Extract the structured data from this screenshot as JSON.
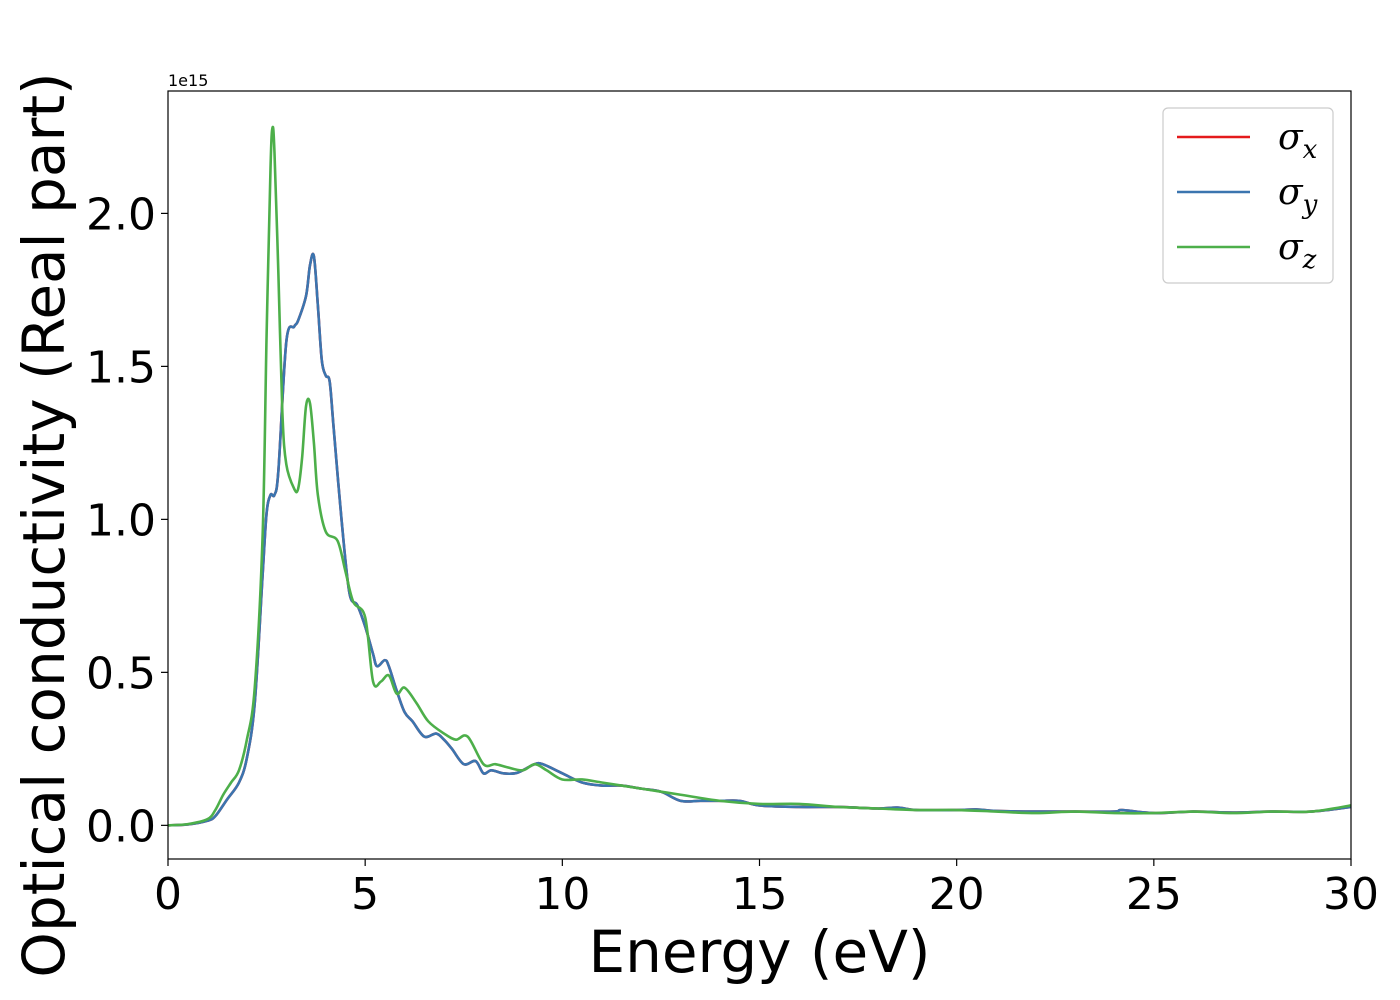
{
  "chart_data": {
    "type": "line",
    "title": "",
    "xlabel": "Energy (eV)",
    "ylabel": "Optical conductivity (Real part)",
    "y_offset_label": "1e15",
    "xlim": [
      0,
      30
    ],
    "ylim": [
      -0.11,
      2.4
    ],
    "x_ticks": [
      0,
      5,
      10,
      15,
      20,
      25,
      30
    ],
    "x_tick_labels": [
      "0",
      "5",
      "10",
      "15",
      "20",
      "25",
      "30"
    ],
    "y_ticks": [
      0.0,
      0.5,
      1.0,
      1.5,
      2.0
    ],
    "y_tick_labels": [
      "0.0",
      "0.5",
      "1.0",
      "1.5",
      "2.0"
    ],
    "grid": false,
    "legend_position": "top-right",
    "series": [
      {
        "name": "σx",
        "symbol": "σ",
        "subscript": "x",
        "color": "#e41a1c",
        "x": [
          0,
          0.5,
          1,
          1.2,
          1.5,
          1.8,
          2,
          2.2,
          2.4,
          2.5,
          2.6,
          2.7,
          2.8,
          3,
          3.2,
          3.3,
          3.5,
          3.6,
          3.7,
          3.8,
          3.9,
          4,
          4.1,
          4.2,
          4.4,
          4.6,
          4.8,
          5,
          5.2,
          5.3,
          5.5,
          5.6,
          5.8,
          6,
          6.2,
          6.5,
          6.8,
          7,
          7.2,
          7.5,
          7.8,
          8,
          8.2,
          8.5,
          8.8,
          9,
          9.3,
          9.5,
          10,
          10.5,
          11,
          11.5,
          12,
          12.5,
          13,
          13.5,
          14,
          14.5,
          15,
          16,
          17,
          18,
          18.5,
          19,
          20,
          20.5,
          21,
          22,
          23,
          24,
          24.2,
          25,
          26,
          27,
          28,
          29,
          30
        ],
        "y": [
          0,
          0.003,
          0.015,
          0.03,
          0.085,
          0.14,
          0.22,
          0.4,
          0.82,
          1.02,
          1.08,
          1.08,
          1.16,
          1.58,
          1.63,
          1.65,
          1.73,
          1.83,
          1.86,
          1.7,
          1.52,
          1.47,
          1.45,
          1.3,
          1.0,
          0.76,
          0.72,
          0.65,
          0.56,
          0.52,
          0.54,
          0.52,
          0.44,
          0.37,
          0.34,
          0.29,
          0.3,
          0.28,
          0.25,
          0.2,
          0.21,
          0.17,
          0.18,
          0.17,
          0.17,
          0.18,
          0.2,
          0.2,
          0.17,
          0.14,
          0.13,
          0.13,
          0.12,
          0.11,
          0.08,
          0.08,
          0.08,
          0.08,
          0.065,
          0.06,
          0.06,
          0.055,
          0.058,
          0.05,
          0.05,
          0.052,
          0.047,
          0.045,
          0.045,
          0.045,
          0.05,
          0.04,
          0.045,
          0.042,
          0.045,
          0.045,
          0.06
        ]
      },
      {
        "name": "σy",
        "symbol": "σ",
        "subscript": "y",
        "color": "#3b75af",
        "x": [
          0,
          0.5,
          1,
          1.2,
          1.5,
          1.8,
          2,
          2.2,
          2.4,
          2.5,
          2.6,
          2.7,
          2.8,
          3,
          3.2,
          3.3,
          3.5,
          3.6,
          3.7,
          3.8,
          3.9,
          4,
          4.1,
          4.2,
          4.4,
          4.6,
          4.8,
          5,
          5.2,
          5.3,
          5.5,
          5.6,
          5.8,
          6,
          6.2,
          6.5,
          6.8,
          7,
          7.2,
          7.5,
          7.8,
          8,
          8.2,
          8.5,
          8.8,
          9,
          9.3,
          9.5,
          10,
          10.5,
          11,
          11.5,
          12,
          12.5,
          13,
          13.5,
          14,
          14.5,
          15,
          16,
          17,
          18,
          18.5,
          19,
          20,
          20.5,
          21,
          22,
          23,
          24,
          24.2,
          25,
          26,
          27,
          28,
          29,
          30
        ],
        "y": [
          0,
          0.003,
          0.015,
          0.03,
          0.085,
          0.14,
          0.22,
          0.4,
          0.82,
          1.02,
          1.08,
          1.08,
          1.16,
          1.58,
          1.63,
          1.65,
          1.73,
          1.83,
          1.86,
          1.7,
          1.52,
          1.47,
          1.45,
          1.3,
          1.0,
          0.76,
          0.72,
          0.65,
          0.56,
          0.52,
          0.54,
          0.52,
          0.44,
          0.37,
          0.34,
          0.29,
          0.3,
          0.28,
          0.25,
          0.2,
          0.21,
          0.17,
          0.18,
          0.17,
          0.17,
          0.18,
          0.2,
          0.2,
          0.17,
          0.14,
          0.13,
          0.13,
          0.12,
          0.11,
          0.08,
          0.08,
          0.08,
          0.08,
          0.065,
          0.06,
          0.06,
          0.055,
          0.058,
          0.05,
          0.05,
          0.052,
          0.047,
          0.045,
          0.045,
          0.045,
          0.05,
          0.04,
          0.045,
          0.042,
          0.045,
          0.045,
          0.06
        ]
      },
      {
        "name": "σz",
        "symbol": "σ",
        "subscript": "z",
        "color": "#4daf4a",
        "x": [
          0,
          0.5,
          1,
          1.2,
          1.4,
          1.6,
          1.8,
          2,
          2.2,
          2.4,
          2.5,
          2.6,
          2.65,
          2.7,
          2.8,
          2.9,
          3,
          3.2,
          3.3,
          3.4,
          3.5,
          3.6,
          3.7,
          3.8,
          4,
          4.3,
          4.5,
          4.7,
          5,
          5.2,
          5.4,
          5.6,
          5.8,
          6,
          6.3,
          6.6,
          7,
          7.3,
          7.6,
          8,
          8.3,
          8.6,
          9,
          9.3,
          9.6,
          10,
          10.5,
          11,
          11.5,
          12,
          12.5,
          13,
          14,
          15,
          16,
          17,
          18,
          19,
          20,
          21,
          22,
          23,
          24,
          25,
          26,
          27,
          28,
          29,
          30
        ],
        "y": [
          0,
          0.004,
          0.02,
          0.05,
          0.1,
          0.14,
          0.18,
          0.28,
          0.45,
          0.95,
          1.6,
          2.15,
          2.28,
          2.2,
          1.8,
          1.35,
          1.18,
          1.1,
          1.1,
          1.2,
          1.37,
          1.38,
          1.25,
          1.08,
          0.96,
          0.93,
          0.83,
          0.73,
          0.68,
          0.47,
          0.47,
          0.49,
          0.43,
          0.45,
          0.4,
          0.34,
          0.3,
          0.28,
          0.29,
          0.2,
          0.2,
          0.19,
          0.18,
          0.2,
          0.18,
          0.15,
          0.15,
          0.14,
          0.13,
          0.12,
          0.11,
          0.1,
          0.08,
          0.07,
          0.07,
          0.06,
          0.055,
          0.05,
          0.05,
          0.045,
          0.04,
          0.045,
          0.04,
          0.04,
          0.045,
          0.04,
          0.045,
          0.045,
          0.065
        ]
      }
    ]
  }
}
